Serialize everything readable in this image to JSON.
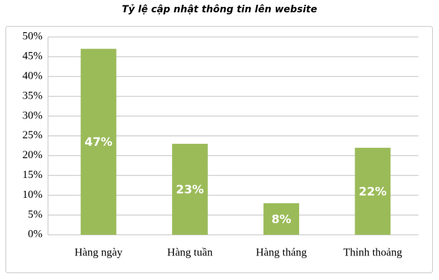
{
  "chart_data": {
    "type": "bar",
    "title": "Tỷ lệ cập nhật thông tin lên website",
    "categories": [
      "Hàng ngày",
      "Hàng tuần",
      "Hàng tháng",
      "Thỉnh thoảng"
    ],
    "values": [
      47,
      23,
      8,
      22
    ],
    "value_labels": [
      "47%",
      "23%",
      "8%",
      "22%"
    ],
    "color": "#9bbb59",
    "ylim": [
      0,
      50
    ],
    "yticks": [
      {
        "value": 0,
        "label": "0%"
      },
      {
        "value": 5,
        "label": "5%"
      },
      {
        "value": 10,
        "label": "10%"
      },
      {
        "value": 15,
        "label": "15%"
      },
      {
        "value": 20,
        "label": "20%"
      },
      {
        "value": 25,
        "label": "25%"
      },
      {
        "value": 30,
        "label": "30%"
      },
      {
        "value": 35,
        "label": "35%"
      },
      {
        "value": 40,
        "label": "40%"
      },
      {
        "value": 45,
        "label": "45%"
      },
      {
        "value": 50,
        "label": "50%"
      }
    ],
    "grid": true
  }
}
